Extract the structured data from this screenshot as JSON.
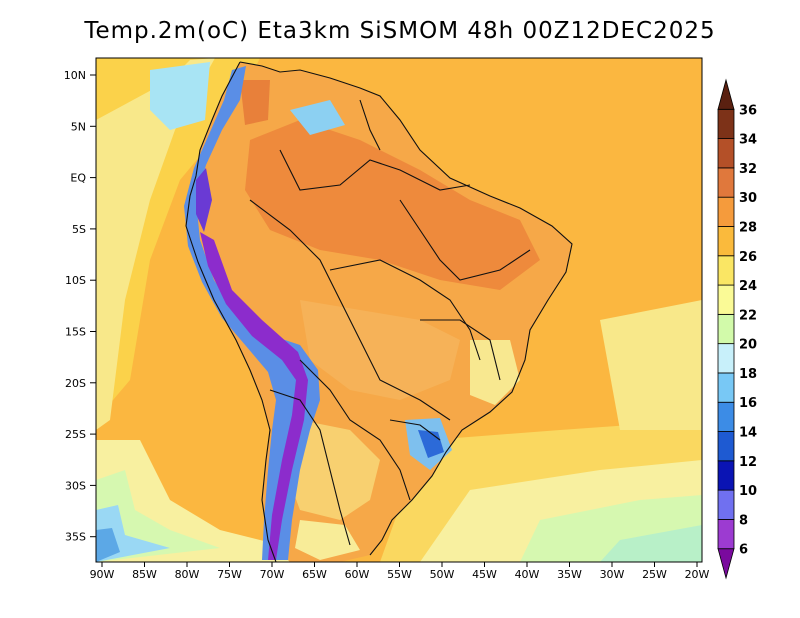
{
  "title": "Temp.2m(oC) Eta3km SiSMOM 48h 00Z12DEC2025",
  "map": {
    "lat_labels": [
      "10N",
      "5N",
      "EQ",
      "5S",
      "10S",
      "15S",
      "20S",
      "25S",
      "30S",
      "35S"
    ],
    "lon_labels": [
      "90W",
      "85W",
      "80W",
      "75W",
      "70W",
      "65W",
      "60W",
      "55W",
      "50W",
      "45W",
      "40W",
      "35W",
      "30W",
      "25W",
      "20W"
    ],
    "lon_range": [
      -90,
      -20
    ],
    "lat_range": [
      -38,
      12
    ]
  },
  "colorbar": {
    "unit": "oC",
    "levels": [
      "6",
      "8",
      "10",
      "12",
      "14",
      "16",
      "18",
      "20",
      "22",
      "24",
      "26",
      "28",
      "30",
      "32",
      "34",
      "36"
    ],
    "colors": [
      "#7a0a9e",
      "#9c3bd1",
      "#7070f0",
      "#0a14b4",
      "#1e5ad2",
      "#3c8ce6",
      "#78c8f5",
      "#c8f0fa",
      "#d2faaa",
      "#fafa96",
      "#fae664",
      "#faba3c",
      "#f59b3c",
      "#e0783c",
      "#b45028",
      "#7d3218",
      "#5a2010"
    ]
  }
}
